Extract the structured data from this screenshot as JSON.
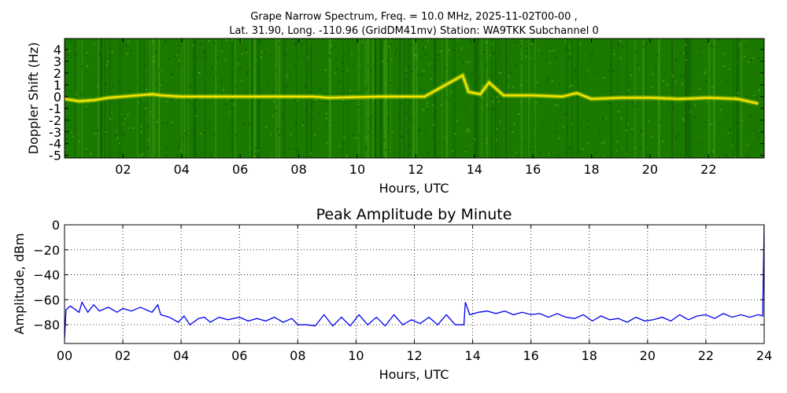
{
  "chart_data": [
    {
      "type": "heatmap",
      "title_line1": "Grape Narrow Spectrum, Freq. = 10.0 MHz, 2025-11-02T00-00 ,",
      "title_line2": "Lat.  31.90, Long. -110.96 (GridDM41mv) Station: WA9TKK Subchannel 0",
      "xlabel": "Hours, UTC",
      "ylabel": "Doppler Shift (Hz)",
      "xlim": [
        0,
        24
      ],
      "ylim": [
        -5,
        5
      ],
      "x_ticks": [
        {
          "v": 2,
          "label": "02"
        },
        {
          "v": 4,
          "label": "04"
        },
        {
          "v": 6,
          "label": "06"
        },
        {
          "v": 8,
          "label": "08"
        },
        {
          "v": 10,
          "label": "10"
        },
        {
          "v": 12,
          "label": "12"
        },
        {
          "v": 14,
          "label": "14"
        },
        {
          "v": 16,
          "label": "16"
        },
        {
          "v": 18,
          "label": "18"
        },
        {
          "v": 20,
          "label": "20"
        },
        {
          "v": 22,
          "label": "22"
        }
      ],
      "y_ticks": [
        {
          "v": 4,
          "label": "4"
        },
        {
          "v": 3,
          "label": "3"
        },
        {
          "v": 2,
          "label": "2"
        },
        {
          "v": 1,
          "label": "1"
        },
        {
          "v": 0,
          "label": "0"
        },
        {
          "v": -1,
          "label": "-1"
        },
        {
          "v": -2,
          "label": "-2"
        },
        {
          "v": -3,
          "label": "-3"
        },
        {
          "v": -4,
          "label": "-4"
        },
        {
          "v": -5,
          "label": "-5"
        }
      ],
      "grid": false,
      "background_color": "#1a7a00",
      "signal_color": "#f5e400",
      "signal_trace": {
        "x": [
          0,
          0.5,
          1,
          1.5,
          2,
          2.5,
          3,
          3.3,
          4,
          5,
          6,
          7,
          7.6,
          8.5,
          9,
          10.8,
          11.6,
          12.3,
          13.6,
          13.8,
          14.2,
          14.5,
          15,
          16,
          17,
          17.5,
          18,
          19,
          20,
          21,
          22,
          23,
          23.7
        ],
        "y": [
          -0.2,
          -0.4,
          -0.3,
          -0.1,
          0.0,
          0.1,
          0.2,
          0.1,
          0.0,
          0.0,
          0.0,
          0.0,
          0.0,
          0.0,
          -0.1,
          0.0,
          0.0,
          0.0,
          1.8,
          0.4,
          0.2,
          1.2,
          0.1,
          0.1,
          0.0,
          0.3,
          -0.2,
          -0.1,
          -0.1,
          -0.2,
          -0.1,
          -0.2,
          -0.6
        ]
      }
    },
    {
      "type": "line",
      "title": "Peak Amplitude by Minute",
      "xlabel": "Hours, UTC",
      "ylabel": "Amplitude, dBm",
      "xlim": [
        0,
        24
      ],
      "ylim": [
        -95,
        0
      ],
      "x_ticks": [
        {
          "v": 0,
          "label": "00"
        },
        {
          "v": 2,
          "label": "02"
        },
        {
          "v": 4,
          "label": "04"
        },
        {
          "v": 6,
          "label": "06"
        },
        {
          "v": 8,
          "label": "08"
        },
        {
          "v": 10,
          "label": "10"
        },
        {
          "v": 12,
          "label": "12"
        },
        {
          "v": 14,
          "label": "14"
        },
        {
          "v": 16,
          "label": "16"
        },
        {
          "v": 18,
          "label": "18"
        },
        {
          "v": 20,
          "label": "20"
        },
        {
          "v": 22,
          "label": "22"
        },
        {
          "v": 24,
          "label": "24"
        }
      ],
      "y_ticks": [
        {
          "v": 0,
          "label": "0"
        },
        {
          "v": -20,
          "label": "−20"
        },
        {
          "v": -40,
          "label": "−40"
        },
        {
          "v": -60,
          "label": "−60"
        },
        {
          "v": -80,
          "label": "−80"
        }
      ],
      "grid": true,
      "line_color": "#0000ee",
      "series": [
        {
          "x": [
            0,
            0.05,
            0.2,
            0.5,
            0.6,
            0.8,
            1.0,
            1.2,
            1.5,
            1.8,
            2.0,
            2.3,
            2.6,
            3.0,
            3.2,
            3.3,
            3.6,
            3.9,
            4.1,
            4.3,
            4.6,
            4.8,
            5.0,
            5.3,
            5.6,
            6.0,
            6.3,
            6.6,
            6.9,
            7.2,
            7.5,
            7.8,
            8.0,
            8.3,
            8.6,
            8.9,
            9.2,
            9.5,
            9.8,
            10.1,
            10.4,
            10.7,
            11.0,
            11.3,
            11.6,
            11.9,
            12.2,
            12.5,
            12.8,
            13.1,
            13.4,
            13.7,
            13.75,
            13.9,
            14.2,
            14.5,
            14.8,
            15.1,
            15.4,
            15.7,
            16.0,
            16.3,
            16.6,
            16.9,
            17.2,
            17.5,
            17.8,
            18.1,
            18.4,
            18.7,
            19.0,
            19.3,
            19.6,
            19.9,
            20.2,
            20.5,
            20.8,
            21.1,
            21.4,
            21.7,
            22.0,
            22.3,
            22.6,
            22.9,
            23.2,
            23.5,
            23.8,
            23.95,
            24.0
          ],
          "y": [
            -92,
            -68,
            -65,
            -70,
            -62,
            -70,
            -64,
            -69,
            -66,
            -70,
            -67,
            -69,
            -66,
            -70,
            -64,
            -72,
            -74,
            -78,
            -73,
            -80,
            -75,
            -74,
            -78,
            -74,
            -76,
            -74,
            -77,
            -75,
            -77,
            -74,
            -78,
            -75,
            -80,
            -80,
            -81,
            -72,
            -81,
            -74,
            -81,
            -72,
            -80,
            -74,
            -81,
            -72,
            -80,
            -76,
            -79,
            -74,
            -80,
            -72,
            -80,
            -80,
            -62,
            -72,
            -70,
            -69,
            -71,
            -69,
            -72,
            -70,
            -72,
            -71,
            -74,
            -71,
            -74,
            -75,
            -72,
            -77,
            -73,
            -76,
            -75,
            -78,
            -74,
            -77,
            -76,
            -74,
            -77,
            -72,
            -76,
            -73,
            -72,
            -75,
            -71,
            -74,
            -72,
            -74,
            -72,
            -73,
            0
          ]
        }
      ]
    }
  ]
}
